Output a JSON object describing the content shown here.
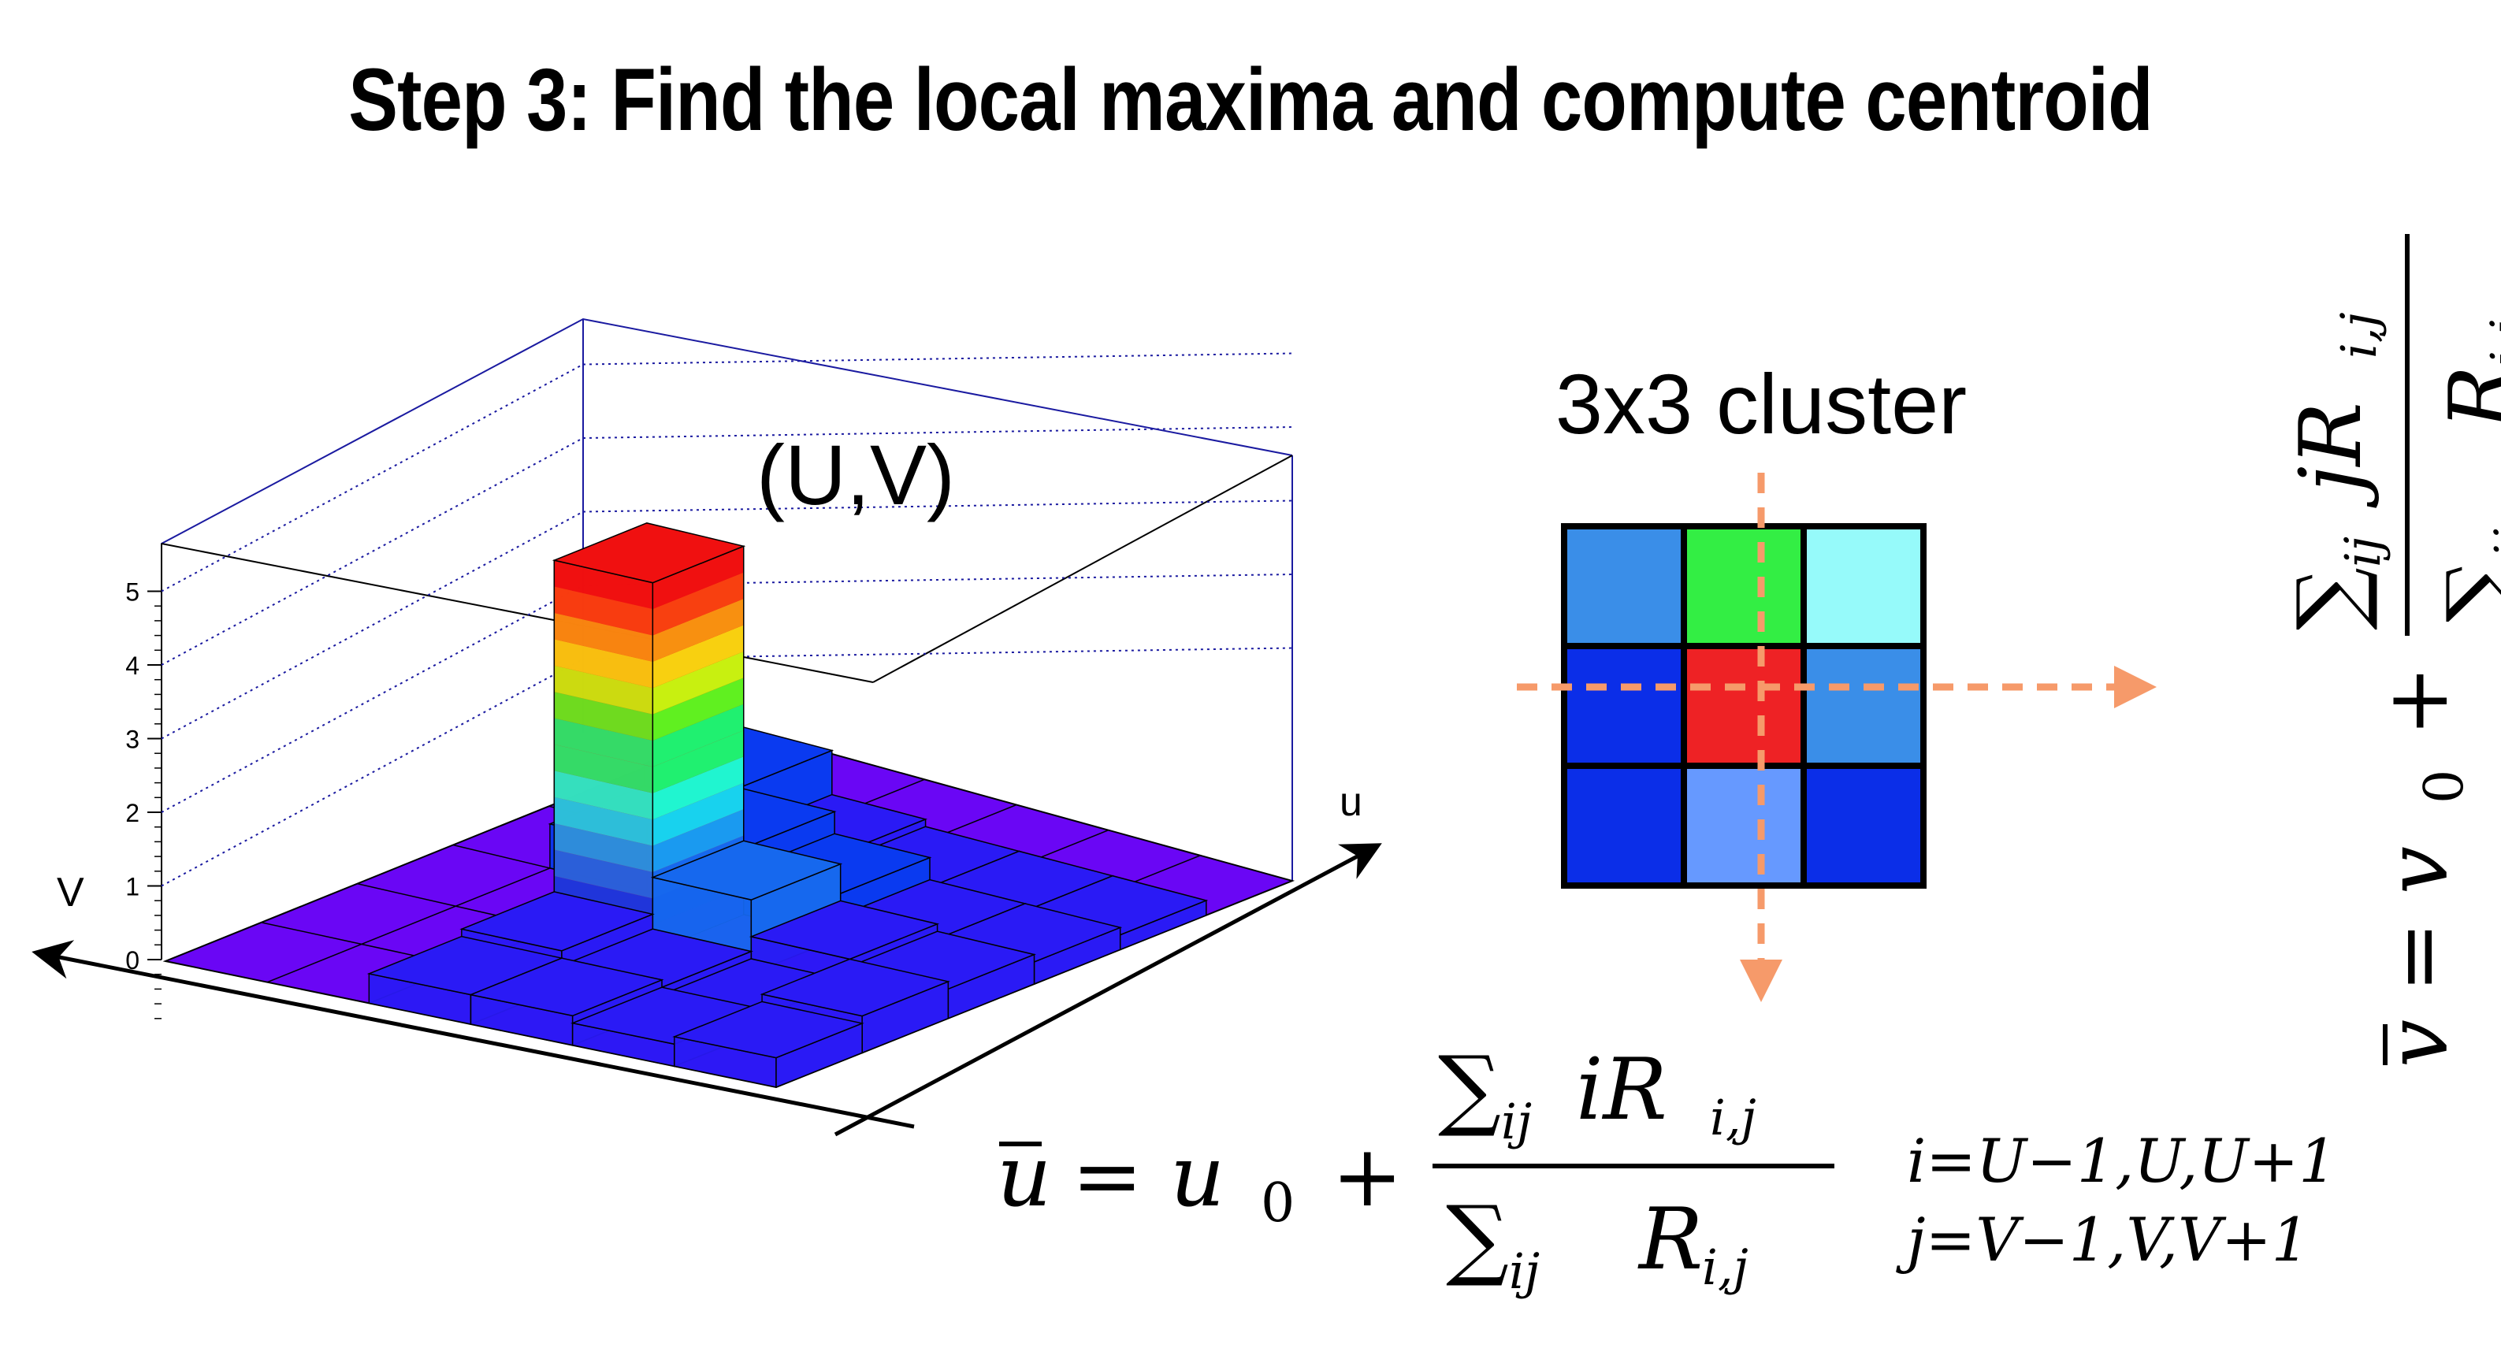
{
  "title": "Step 3: Find the local maxima and compute centroid",
  "histogram": {
    "peak_label": "(U,V)",
    "v_axis_label": "V",
    "u_axis_label": "u",
    "z_ticks": [
      "0",
      "1",
      "2",
      "3",
      "4",
      "5"
    ],
    "max_value": 5,
    "grid": [
      [
        0,
        0,
        0,
        0,
        0,
        0
      ],
      [
        0,
        0,
        0,
        0.6,
        0.9,
        0
      ],
      [
        0.4,
        0.5,
        5,
        0.9,
        0.3,
        0
      ],
      [
        0.4,
        0.3,
        1.0,
        0.6,
        0.2,
        0
      ],
      [
        0.3,
        0.2,
        0.5,
        0.3,
        0.2,
        0
      ],
      [
        0.4,
        0.5,
        0.4,
        0.3,
        0.2,
        0
      ]
    ]
  },
  "cluster": {
    "label": "3x3 cluster",
    "cell_colors": [
      [
        "#3a8ee8",
        "#33ee44",
        "#96fafa"
      ],
      [
        "#0b2ee8",
        "#ee2225",
        "#3a8ee8"
      ],
      [
        "#0b2ee8",
        "#6699ff",
        "#0b2ee8"
      ]
    ],
    "arrow_color": "#f69a6a"
  },
  "formulas": {
    "u_lhs": "u",
    "u_rhs": "= u",
    "u_sub": "0",
    "plus": "+",
    "num_u": "iR",
    "sub_ij": "ij",
    "R": "R",
    "sub_ij_R": "i,j",
    "v_lhs": "v",
    "v_rhs": "= v",
    "v_sub": "0",
    "num_v": "jR",
    "range_i": "i=U−1,U,U+1",
    "range_j": "j=V−1,V,V+1"
  }
}
